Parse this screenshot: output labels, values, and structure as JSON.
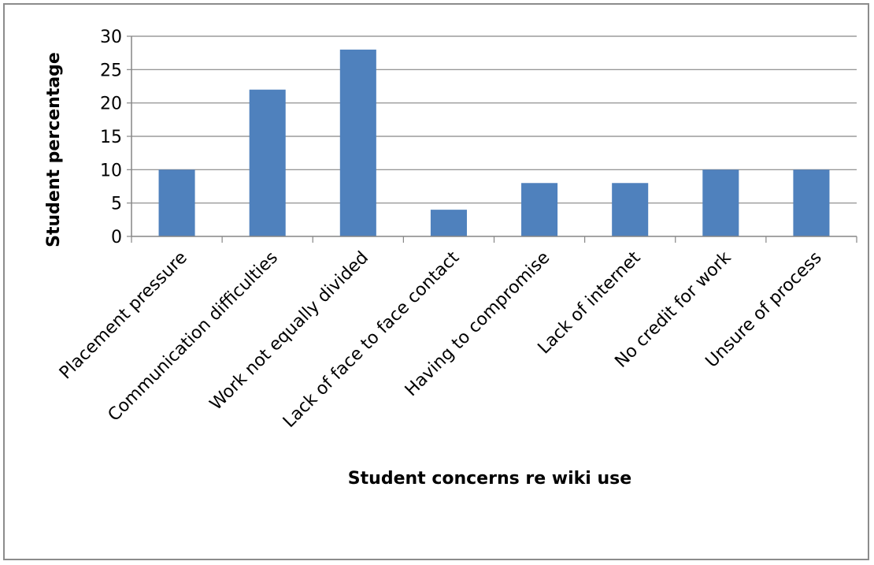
{
  "chart_data": {
    "type": "bar",
    "categories": [
      "Placement pressure",
      "Communication difficulties",
      "Work not equally divided",
      "Lack of face to face contact",
      "Having to compromise",
      "Lack of internet",
      "No credit for work",
      "Unsure of process"
    ],
    "values": [
      10,
      22,
      28,
      4,
      8,
      8,
      10,
      10
    ],
    "xlabel": "Student concerns re wiki use",
    "ylabel": "Student percentage",
    "ylim": [
      0,
      30
    ],
    "yticks": [
      "0",
      "5",
      "10",
      "15",
      "20",
      "25",
      "30"
    ],
    "grid": true,
    "legend": "none",
    "bar_color": "#4f81bd",
    "grid_color": "#868686"
  }
}
